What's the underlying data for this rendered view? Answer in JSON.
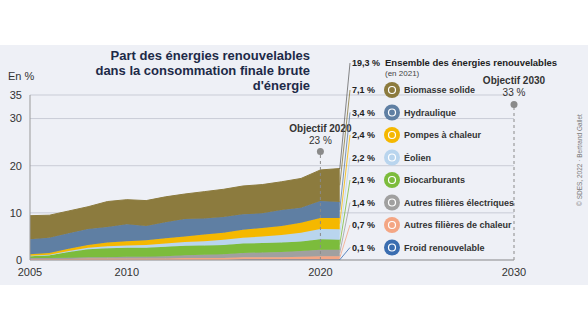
{
  "chart_data": {
    "type": "area",
    "stacked": true,
    "grid": true,
    "title": "Part des énergies renouvelables dans la consommation finale brute d'énergie",
    "y_label": "En %",
    "x": [
      2005,
      2006,
      2007,
      2008,
      2009,
      2010,
      2011,
      2012,
      2013,
      2014,
      2015,
      2016,
      2017,
      2018,
      2019,
      2020,
      2021
    ],
    "xlim": [
      2005,
      2030
    ],
    "xticks": [
      2005,
      2010,
      2020,
      2030
    ],
    "ylim": [
      0,
      35
    ],
    "yticks": [
      0,
      10,
      20,
      30,
      35
    ],
    "series": [
      {
        "name": "Biomasse solide",
        "color": "#8c7b3e",
        "values": [
          5.0,
          4.8,
          4.7,
          4.7,
          5.4,
          5.2,
          5.4,
          5.4,
          5.3,
          5.7,
          5.9,
          6.0,
          6.1,
          6.0,
          6.2,
          6.6,
          7.1
        ],
        "value_labels": [
          null,
          null,
          null,
          null,
          null,
          null,
          null,
          null,
          null,
          null,
          null,
          null,
          null,
          null,
          null,
          null,
          "7,1 %"
        ]
      },
      {
        "name": "Hydraulique",
        "color": "#5f7fa3",
        "values": [
          3.2,
          3.2,
          3.3,
          3.4,
          3.3,
          3.6,
          3.0,
          3.4,
          3.7,
          3.4,
          3.3,
          3.3,
          3.1,
          3.4,
          3.2,
          3.6,
          3.4
        ],
        "value_labels": [
          null,
          null,
          null,
          null,
          null,
          null,
          null,
          null,
          null,
          null,
          null,
          null,
          null,
          null,
          null,
          null,
          "3,4 %"
        ]
      },
      {
        "name": "Pompes à chaleur",
        "color": "#f5b800",
        "values": [
          0.3,
          0.4,
          0.5,
          0.6,
          0.8,
          0.9,
          1.0,
          1.1,
          1.2,
          1.4,
          1.5,
          1.7,
          1.8,
          1.9,
          2.1,
          2.3,
          2.4
        ],
        "value_labels": [
          null,
          null,
          null,
          null,
          null,
          null,
          null,
          null,
          null,
          null,
          null,
          null,
          null,
          null,
          null,
          null,
          "2,4 %"
        ]
      },
      {
        "name": "Éolien",
        "color": "#b9d5ee",
        "values": [
          0.1,
          0.1,
          0.2,
          0.3,
          0.4,
          0.5,
          0.6,
          0.7,
          0.8,
          0.9,
          1.1,
          1.2,
          1.4,
          1.6,
          1.9,
          2.2,
          2.2
        ],
        "value_labels": [
          null,
          null,
          null,
          null,
          null,
          null,
          null,
          null,
          null,
          null,
          null,
          null,
          null,
          null,
          null,
          null,
          "2,2 %"
        ]
      },
      {
        "name": "Biocarburants",
        "color": "#7cbc3c",
        "values": [
          0.4,
          0.6,
          1.2,
          1.7,
          1.9,
          1.9,
          1.9,
          2.0,
          2.0,
          2.0,
          2.0,
          2.0,
          2.0,
          2.0,
          2.0,
          2.2,
          2.1
        ],
        "value_labels": [
          null,
          null,
          null,
          null,
          null,
          null,
          null,
          null,
          null,
          null,
          null,
          null,
          null,
          null,
          null,
          null,
          "2,1 %"
        ]
      },
      {
        "name": "Autres filières électriques",
        "color": "#a0a0a0",
        "values": [
          0.2,
          0.2,
          0.3,
          0.3,
          0.3,
          0.4,
          0.4,
          0.5,
          0.6,
          0.7,
          0.8,
          0.9,
          1.0,
          1.1,
          1.2,
          1.4,
          1.4
        ],
        "value_labels": [
          null,
          null,
          null,
          null,
          null,
          null,
          null,
          null,
          null,
          null,
          null,
          null,
          null,
          null,
          null,
          null,
          "1,4 %"
        ]
      },
      {
        "name": "Autres filières de chaleur",
        "color": "#f4a684",
        "values": [
          0.2,
          0.2,
          0.2,
          0.3,
          0.3,
          0.3,
          0.3,
          0.3,
          0.4,
          0.4,
          0.4,
          0.5,
          0.5,
          0.5,
          0.6,
          0.7,
          0.7
        ],
        "value_labels": [
          null,
          null,
          null,
          null,
          null,
          null,
          null,
          null,
          null,
          null,
          null,
          null,
          null,
          null,
          null,
          null,
          "0,7 %"
        ]
      },
      {
        "name": "Froid renouvelable",
        "color": "#3a6db0",
        "values": [
          0.0,
          0.0,
          0.0,
          0.0,
          0.0,
          0.0,
          0.0,
          0.0,
          0.0,
          0.0,
          0.0,
          0.1,
          0.1,
          0.1,
          0.1,
          0.1,
          0.1
        ],
        "value_labels": [
          null,
          null,
          null,
          null,
          null,
          null,
          null,
          null,
          null,
          null,
          null,
          null,
          null,
          null,
          null,
          null,
          "0,1 %"
        ]
      }
    ],
    "annotations": {
      "total": {
        "text": "Ensemble des énergies renouvelables",
        "note": "(en 2021)",
        "x": 2021,
        "value": 19.3,
        "label": "19,3 %"
      },
      "targets": [
        {
          "text": "Objectif 2020",
          "x": 2020,
          "value": 23,
          "label": "23 %"
        },
        {
          "text": "Objectif 2030",
          "x": 2030,
          "value": 33,
          "label": "33 %"
        }
      ],
      "credit": "© SDES, 2022 · Bertrand Gallet"
    }
  }
}
